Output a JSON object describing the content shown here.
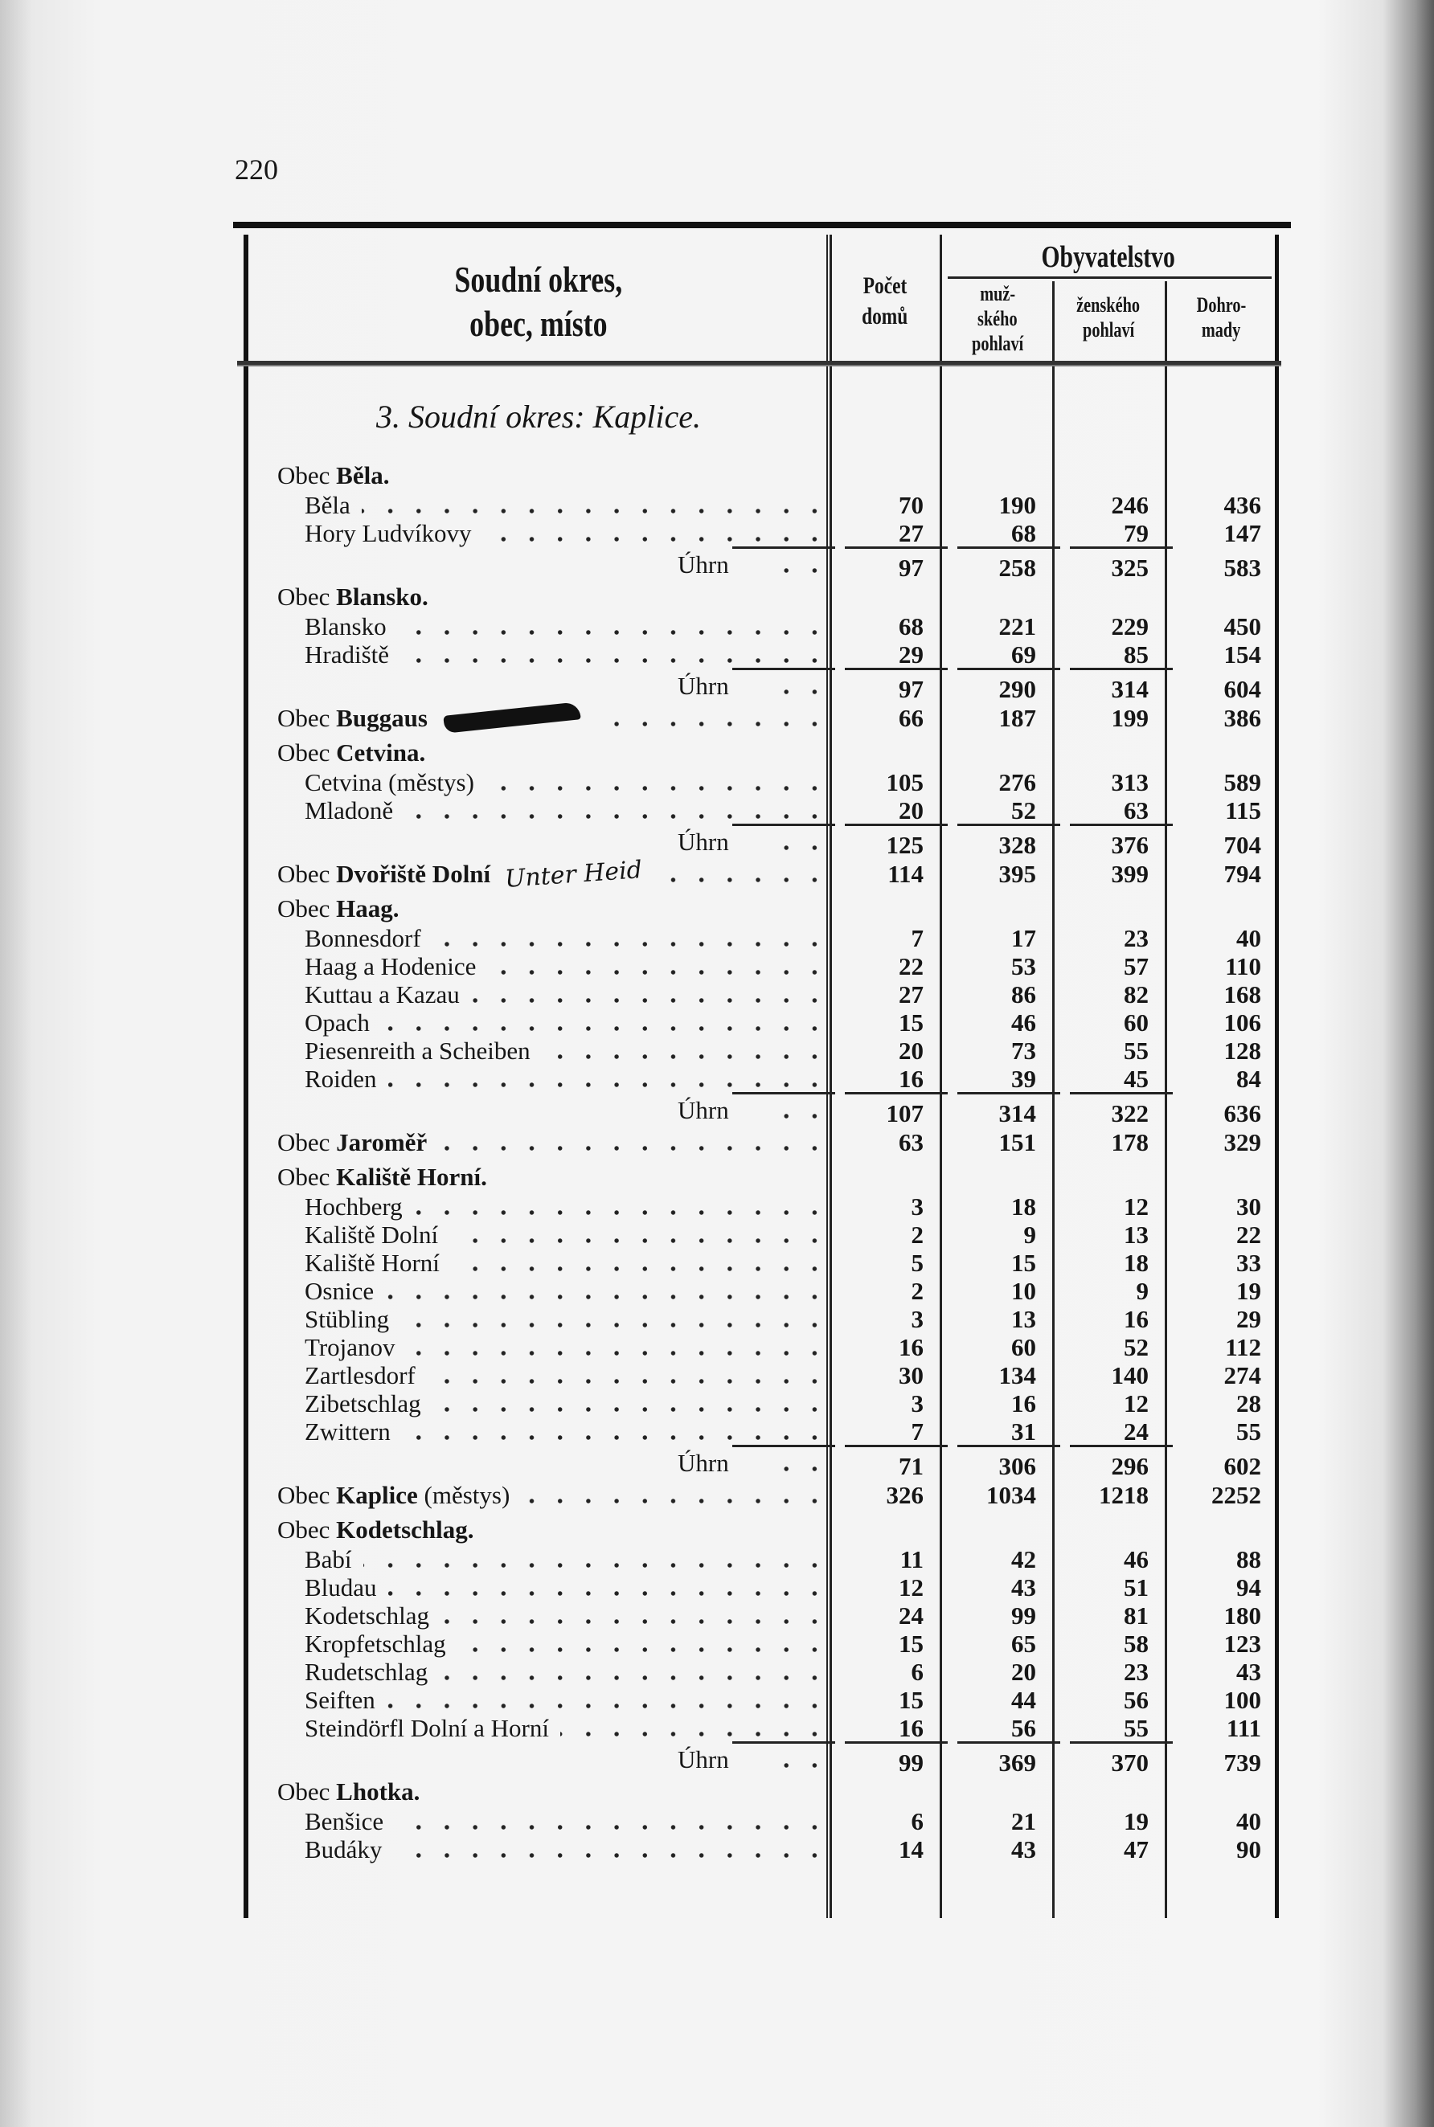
{
  "page_number": "220",
  "header": {
    "name_col": [
      "Soudní okres,",
      "obec, místo"
    ],
    "houses_col": [
      "Počet",
      "domů"
    ],
    "population": "Obyvatelstvo",
    "male": [
      "muž-",
      "ského",
      "pohlaví"
    ],
    "female": [
      "ženského",
      "pohlaví"
    ],
    "total": [
      "Dohro-",
      "mady"
    ]
  },
  "section_title": "3. Soudní okres: Kaplice.",
  "total_label": "Úhrn",
  "rows": [
    {
      "type": "group",
      "prefix": "Obec",
      "name": "Běla."
    },
    {
      "type": "item",
      "name": "Běla",
      "values": [
        "70",
        "190",
        "246",
        "436"
      ]
    },
    {
      "type": "item",
      "name": "Hory Ludvíkovy",
      "values": [
        "27",
        "68",
        "79",
        "147"
      ]
    },
    {
      "type": "total",
      "values": [
        "97",
        "258",
        "325",
        "583"
      ]
    },
    {
      "type": "group",
      "prefix": "Obec",
      "name": "Blansko."
    },
    {
      "type": "item",
      "name": "Blansko",
      "values": [
        "68",
        "221",
        "229",
        "450"
      ]
    },
    {
      "type": "item",
      "name": "Hradiště",
      "values": [
        "29",
        "69",
        "85",
        "154"
      ]
    },
    {
      "type": "total",
      "values": [
        "97",
        "290",
        "314",
        "604"
      ]
    },
    {
      "type": "single",
      "prefix": "Obec",
      "name": "Buggaus",
      "scribble": true,
      "values": [
        "66",
        "187",
        "199",
        "386"
      ]
    },
    {
      "type": "group",
      "prefix": "Obec",
      "name": "Cetvina."
    },
    {
      "type": "item",
      "name": "Cetvina (městys)",
      "values": [
        "105",
        "276",
        "313",
        "589"
      ]
    },
    {
      "type": "item",
      "name": "Mladoně",
      "values": [
        "20",
        "52",
        "63",
        "115"
      ]
    },
    {
      "type": "total",
      "values": [
        "125",
        "328",
        "376",
        "704"
      ]
    },
    {
      "type": "single",
      "prefix": "Obec",
      "name": "Dvořiště Dolní",
      "handwritten": "Unter Heid",
      "values": [
        "114",
        "395",
        "399",
        "794"
      ]
    },
    {
      "type": "group",
      "prefix": "Obec",
      "name": "Haag."
    },
    {
      "type": "item",
      "name": "Bonnesdorf",
      "values": [
        "7",
        "17",
        "23",
        "40"
      ]
    },
    {
      "type": "item",
      "name": "Haag a Hodenice",
      "values": [
        "22",
        "53",
        "57",
        "110"
      ]
    },
    {
      "type": "item",
      "name": "Kuttau a Kazau",
      "values": [
        "27",
        "86",
        "82",
        "168"
      ]
    },
    {
      "type": "item",
      "name": "Opach",
      "values": [
        "15",
        "46",
        "60",
        "106"
      ]
    },
    {
      "type": "item",
      "name": "Piesenreith a Scheiben",
      "values": [
        "20",
        "73",
        "55",
        "128"
      ]
    },
    {
      "type": "item",
      "name": "Roiden",
      "values": [
        "16",
        "39",
        "45",
        "84"
      ]
    },
    {
      "type": "total",
      "values": [
        "107",
        "314",
        "322",
        "636"
      ]
    },
    {
      "type": "single",
      "prefix": "Obec",
      "name": "Jaroměř",
      "values": [
        "63",
        "151",
        "178",
        "329"
      ]
    },
    {
      "type": "group",
      "prefix": "Obec",
      "name": "Kaliště Horní."
    },
    {
      "type": "item",
      "name": "Hochberg",
      "values": [
        "3",
        "18",
        "12",
        "30"
      ]
    },
    {
      "type": "item",
      "name": "Kaliště Dolní",
      "values": [
        "2",
        "9",
        "13",
        "22"
      ]
    },
    {
      "type": "item",
      "name": "Kaliště Horní",
      "values": [
        "5",
        "15",
        "18",
        "33"
      ]
    },
    {
      "type": "item",
      "name": "Osnice",
      "values": [
        "2",
        "10",
        "9",
        "19"
      ]
    },
    {
      "type": "item",
      "name": "Stübling",
      "values": [
        "3",
        "13",
        "16",
        "29"
      ]
    },
    {
      "type": "item",
      "name": "Trojanov",
      "values": [
        "16",
        "60",
        "52",
        "112"
      ]
    },
    {
      "type": "item",
      "name": "Zartlesdorf",
      "values": [
        "30",
        "134",
        "140",
        "274"
      ]
    },
    {
      "type": "item",
      "name": "Zibetschlag",
      "values": [
        "3",
        "16",
        "12",
        "28"
      ]
    },
    {
      "type": "item",
      "name": "Zwittern",
      "values": [
        "7",
        "31",
        "24",
        "55"
      ]
    },
    {
      "type": "total",
      "values": [
        "71",
        "306",
        "296",
        "602"
      ]
    },
    {
      "type": "single",
      "prefix": "Obec",
      "name": "Kaplice",
      "suffix": "(městys)",
      "values": [
        "326",
        "1034",
        "1218",
        "2252"
      ]
    },
    {
      "type": "group",
      "prefix": "Obec",
      "name": "Kodetschlag."
    },
    {
      "type": "item",
      "name": "Babí",
      "values": [
        "11",
        "42",
        "46",
        "88"
      ]
    },
    {
      "type": "item",
      "name": "Bludau",
      "values": [
        "12",
        "43",
        "51",
        "94"
      ]
    },
    {
      "type": "item",
      "name": "Kodetschlag",
      "values": [
        "24",
        "99",
        "81",
        "180"
      ]
    },
    {
      "type": "item",
      "name": "Kropfetschlag",
      "values": [
        "15",
        "65",
        "58",
        "123"
      ]
    },
    {
      "type": "item",
      "name": "Rudetschlag",
      "values": [
        "6",
        "20",
        "23",
        "43"
      ]
    },
    {
      "type": "item",
      "name": "Seiften",
      "values": [
        "15",
        "44",
        "56",
        "100"
      ]
    },
    {
      "type": "item",
      "name": "Steindörfl Dolní a Horní",
      "values": [
        "16",
        "56",
        "55",
        "111"
      ]
    },
    {
      "type": "total",
      "values": [
        "99",
        "369",
        "370",
        "739"
      ]
    },
    {
      "type": "group",
      "prefix": "Obec",
      "name": "Lhotka."
    },
    {
      "type": "item",
      "name": "Benšice",
      "values": [
        "6",
        "21",
        "19",
        "40"
      ]
    },
    {
      "type": "item",
      "name": "Budáky",
      "values": [
        "14",
        "43",
        "47",
        "90"
      ]
    }
  ]
}
